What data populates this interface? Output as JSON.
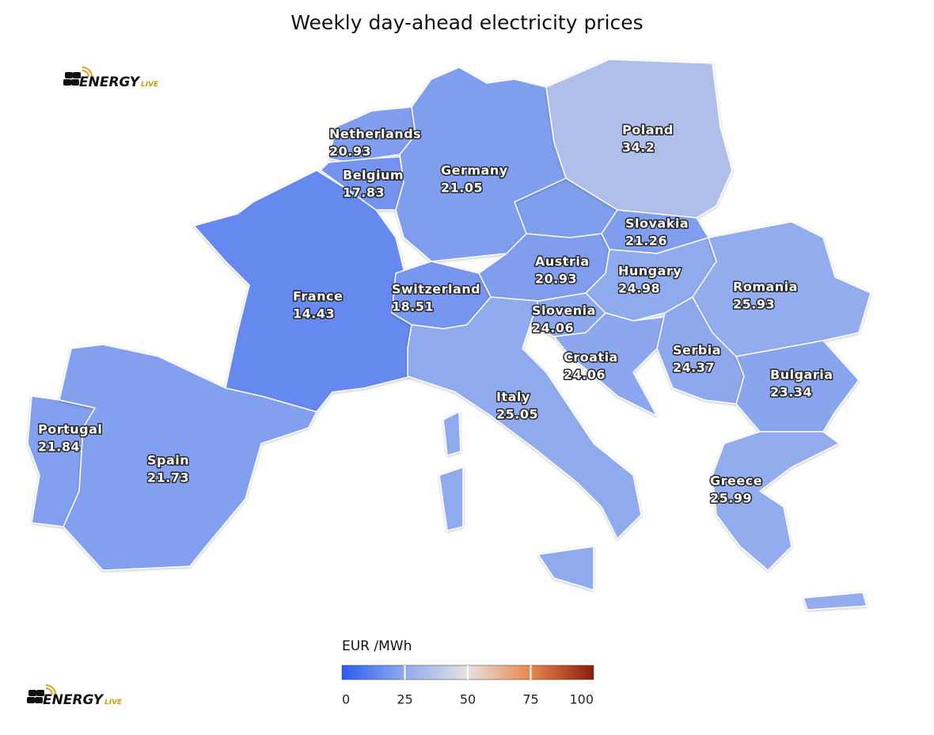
{
  "logo": {
    "name": "ENERGY",
    "suffix": "LIVE"
  },
  "chart_data": {
    "type": "map",
    "title": "Weekly day-ahead electricity prices",
    "categories": [
      "Netherlands",
      "Belgium",
      "Germany",
      "Poland",
      "France",
      "Switzerland",
      "Austria",
      "Slovakia",
      "Hungary",
      "Romania",
      "Slovenia",
      "Croatia",
      "Serbia",
      "Bulgaria",
      "Italy",
      "Greece",
      "Portugal",
      "Spain"
    ],
    "values": [
      20.93,
      17.83,
      21.05,
      34.2,
      14.43,
      18.51,
      20.93,
      21.26,
      24.98,
      25.93,
      24.06,
      24.06,
      24.37,
      23.34,
      25.05,
      25.99,
      21.84,
      21.73
    ],
    "colorbar": {
      "title": "EUR /MWh",
      "lim": [
        0,
        100
      ],
      "ticks": [
        0,
        25,
        50,
        75,
        100
      ],
      "colors": [
        "#2d5df0",
        "#90aaee",
        "#e6e2e0",
        "#e8874d",
        "#8a1c0c"
      ]
    }
  }
}
